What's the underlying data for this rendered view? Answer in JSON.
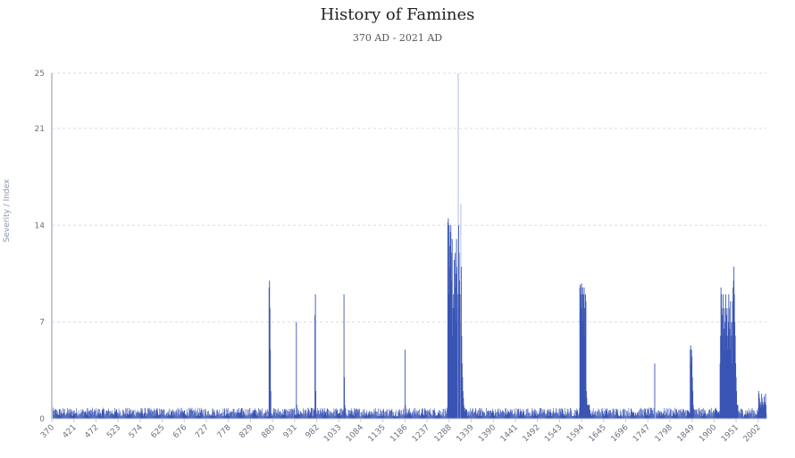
{
  "chart_data": {
    "type": "bar",
    "title": "History of Famines",
    "subtitle": "370 AD - 2021 AD",
    "ylabel": "Severity / Index",
    "xlabel": "",
    "xlim": [
      370,
      2021
    ],
    "ylim": [
      0,
      25
    ],
    "yticks": [
      0,
      7,
      14,
      21,
      25
    ],
    "xticks": [
      370,
      421,
      472,
      523,
      574,
      625,
      676,
      727,
      778,
      829,
      880,
      931,
      982,
      1033,
      1084,
      1135,
      1186,
      1237,
      1288,
      1339,
      1390,
      1441,
      1492,
      1543,
      1594,
      1645,
      1696,
      1747,
      1798,
      1849,
      1900,
      1951,
      2002
    ],
    "grid": true,
    "baseline_noise_max": 0.8,
    "bar_color": "#3a55b4",
    "highlight_color": "#aab8e0",
    "series": [
      {
        "x": [
          872,
          873,
          874,
          875,
          876,
          935,
          936,
          978,
          979,
          980,
          1045,
          1046,
          1047,
          1186,
          1187,
          1285,
          1286,
          1287,
          1288,
          1289,
          1290,
          1291,
          1292,
          1293,
          1294,
          1295,
          1296,
          1297,
          1298,
          1299,
          1300,
          1301,
          1302,
          1303,
          1304,
          1305,
          1306,
          1307,
          1308,
          1309,
          1310,
          1311,
          1312,
          1313,
          1314,
          1315,
          1316,
          1317,
          1318,
          1319,
          1320,
          1321,
          1322,
          1590,
          1591,
          1592,
          1593,
          1594,
          1595,
          1596,
          1597,
          1598,
          1599,
          1600,
          1601,
          1602,
          1603,
          1604,
          1605,
          1606,
          1607,
          1608,
          1609,
          1610,
          1611,
          1612,
          1763,
          1764,
          1845,
          1846,
          1847,
          1848,
          1849,
          1850,
          1851,
          1852,
          1914,
          1915,
          1916,
          1917,
          1918,
          1919,
          1920,
          1921,
          1922,
          1923,
          1924,
          1925,
          1926,
          1927,
          1928,
          1929,
          1930,
          1931,
          1932,
          1933,
          1934,
          1935,
          1936,
          1937,
          1938,
          1939,
          1940,
          1941,
          1942,
          1943,
          1944,
          1945,
          1946,
          1947,
          1948,
          1949,
          1950,
          1951,
          1952,
          1953,
          1954,
          1955,
          2003,
          2004,
          2005,
          2006,
          2007,
          2008,
          2009,
          2010,
          2011,
          2012,
          2013,
          2014,
          2015,
          2016,
          2017,
          2018,
          2019,
          2020
        ],
        "y": [
          9.5,
          10.0,
          8.0,
          5.0,
          2.0,
          7.0,
          1.0,
          7.5,
          9.0,
          2.0,
          9.0,
          3.0,
          1.0,
          5.0,
          1.0,
          14.2,
          14.5,
          9.0,
          14.0,
          12.5,
          11.0,
          13.5,
          14.0,
          12.0,
          10.0,
          13.0,
          6.0,
          8.0,
          9.0,
          8.0,
          11.5,
          9.5,
          12.0,
          10.5,
          7.0,
          13.0,
          11.0,
          9.0,
          8.0,
          25.0,
          14.0,
          12.0,
          10.0,
          9.0,
          7.0,
          15.5,
          11.0,
          6.0,
          4.0,
          3.0,
          2.0,
          1.5,
          1.0,
          9.5,
          9.7,
          8.0,
          9.0,
          9.8,
          8.0,
          9.5,
          7.0,
          9.0,
          8.5,
          9.5,
          8.0,
          6.0,
          9.0,
          8.5,
          2.0,
          1.5,
          1.0,
          1.0,
          1.0,
          1.0,
          1.0,
          1.0,
          4.0,
          1.0,
          5.0,
          5.3,
          4.0,
          5.0,
          4.5,
          3.0,
          2.0,
          1.0,
          4.0,
          6.0,
          9.5,
          9.0,
          8.0,
          6.0,
          7.5,
          9.0,
          8.0,
          5.0,
          6.5,
          7.0,
          8.0,
          9.0,
          6.0,
          7.5,
          8.0,
          6.0,
          5.0,
          7.0,
          9.0,
          8.0,
          6.5,
          5.0,
          8.5,
          7.0,
          6.0,
          4.0,
          7.0,
          8.5,
          9.5,
          10.0,
          11.0,
          9.0,
          7.0,
          6.0,
          4.0,
          3.0,
          2.0,
          1.0,
          1.0,
          1.0,
          2.0,
          1.8,
          1.5,
          1.0,
          1.2,
          0.8,
          1.0,
          1.8,
          1.5,
          1.0,
          1.2,
          0.8,
          1.0,
          1.6,
          1.2,
          1.0,
          1.8,
          1.0
        ],
        "highlight_x": [
          1309,
          1315,
          1764
        ]
      }
    ]
  }
}
